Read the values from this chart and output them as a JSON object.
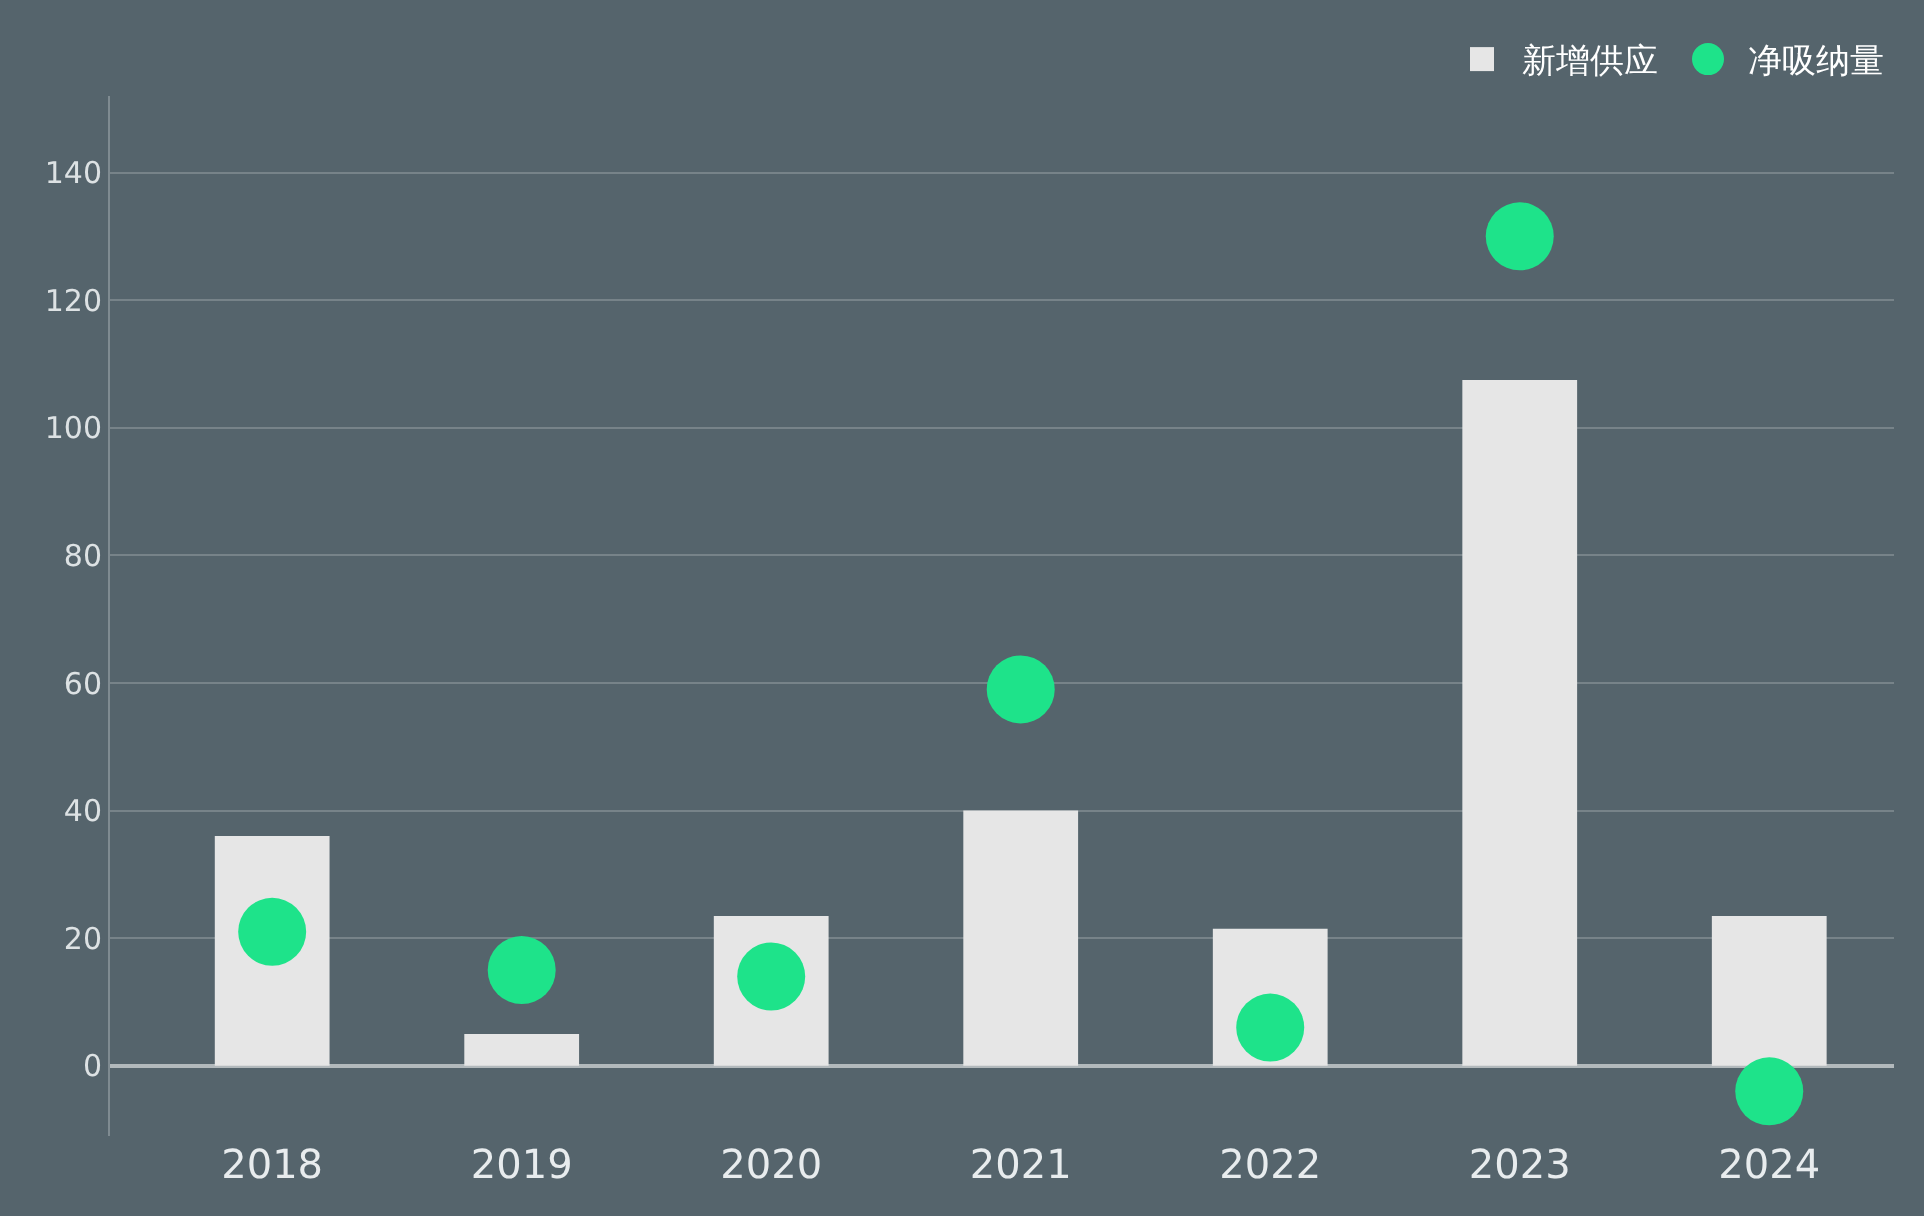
{
  "chart_data": {
    "type": "bar",
    "categories": [
      "2018",
      "2019",
      "2020",
      "2021",
      "2022",
      "2023",
      "2024"
    ],
    "series": [
      {
        "name": "新增供应",
        "color": "#e6e6e6",
        "values": [
          36,
          5,
          23.5,
          40,
          21.5,
          107.5,
          23.5
        ]
      },
      {
        "name": "净吸纳量",
        "type": "scatter",
        "marker": "circle",
        "color": "#1ee38a",
        "values": [
          21,
          15,
          14,
          59,
          6,
          130,
          -4
        ]
      }
    ],
    "ylim": [
      -11,
      152
    ],
    "yticks": [
      0,
      20,
      40,
      60,
      80,
      100,
      120,
      140
    ],
    "grid": "y",
    "legend": "top right"
  }
}
